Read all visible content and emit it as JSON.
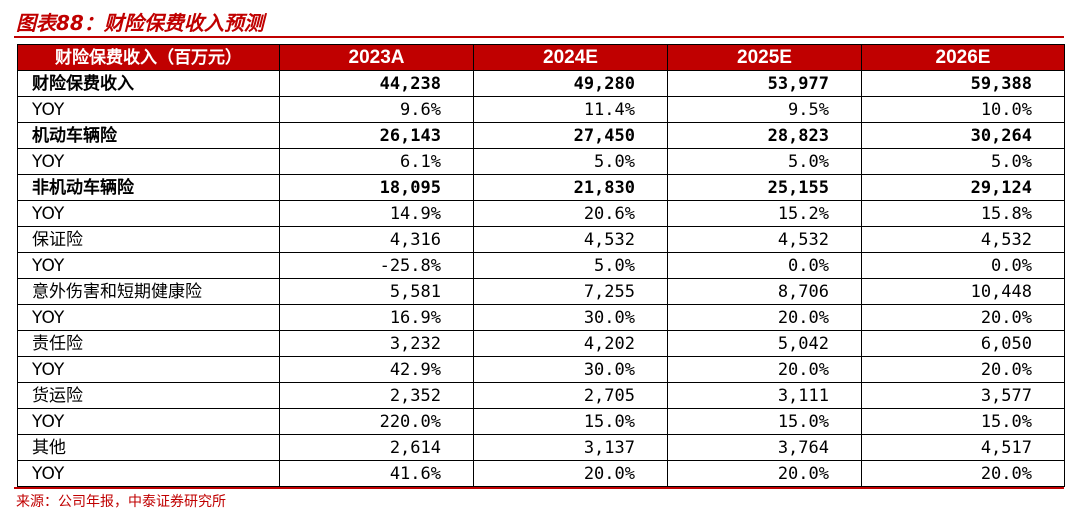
{
  "title": "图表88：财险保费收入预测",
  "table": {
    "header": [
      "财险保费收入（百万元）",
      "2023A",
      "2024E",
      "2025E",
      "2026E"
    ],
    "rows": [
      {
        "label": "财险保费收入",
        "bold": true,
        "values": [
          "44,238",
          "49,280",
          "53,977",
          "59,388"
        ]
      },
      {
        "label": "YOY",
        "bold": false,
        "values": [
          "9.6%",
          "11.4%",
          "9.5%",
          "10.0%"
        ]
      },
      {
        "label": "机动车辆险",
        "bold": true,
        "values": [
          "26,143",
          "27,450",
          "28,823",
          "30,264"
        ]
      },
      {
        "label": "YOY",
        "bold": false,
        "values": [
          "6.1%",
          "5.0%",
          "5.0%",
          "5.0%"
        ]
      },
      {
        "label": "非机动车辆险",
        "bold": true,
        "values": [
          "18,095",
          "21,830",
          "25,155",
          "29,124"
        ]
      },
      {
        "label": "YOY",
        "bold": false,
        "values": [
          "14.9%",
          "20.6%",
          "15.2%",
          "15.8%"
        ]
      },
      {
        "label": "保证险",
        "bold": false,
        "values": [
          "4,316",
          "4,532",
          "4,532",
          "4,532"
        ]
      },
      {
        "label": "YOY",
        "bold": false,
        "values": [
          "-25.8%",
          "5.0%",
          "0.0%",
          "0.0%"
        ]
      },
      {
        "label": "意外伤害和短期健康险",
        "bold": false,
        "values": [
          "5,581",
          "7,255",
          "8,706",
          "10,448"
        ]
      },
      {
        "label": "YOY",
        "bold": false,
        "values": [
          "16.9%",
          "30.0%",
          "20.0%",
          "20.0%"
        ]
      },
      {
        "label": "责任险",
        "bold": false,
        "values": [
          "3,232",
          "4,202",
          "5,042",
          "6,050"
        ]
      },
      {
        "label": "YOY",
        "bold": false,
        "values": [
          "42.9%",
          "30.0%",
          "20.0%",
          "20.0%"
        ]
      },
      {
        "label": "货运险",
        "bold": false,
        "values": [
          "2,352",
          "2,705",
          "3,111",
          "3,577"
        ]
      },
      {
        "label": "YOY",
        "bold": false,
        "values": [
          "220.0%",
          "15.0%",
          "15.0%",
          "15.0%"
        ]
      },
      {
        "label": "其他",
        "bold": false,
        "values": [
          "2,614",
          "3,137",
          "3,764",
          "4,517"
        ]
      },
      {
        "label": "YOY",
        "bold": false,
        "values": [
          "41.6%",
          "20.0%",
          "20.0%",
          "20.0%"
        ]
      }
    ]
  },
  "source": "来源：公司年报，中泰证券研究所",
  "colors": {
    "accent": "#c00000",
    "header_text": "#ffffff"
  }
}
